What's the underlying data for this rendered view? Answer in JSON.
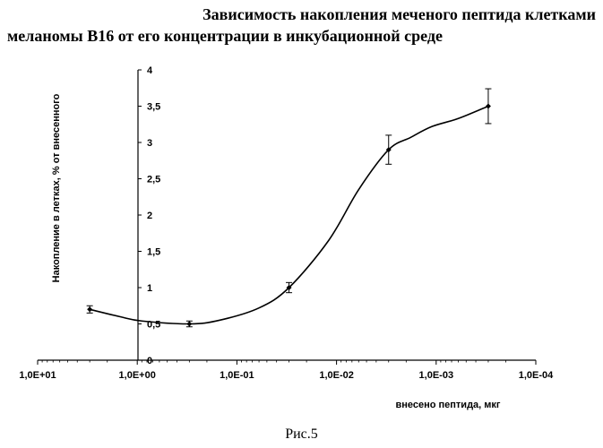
{
  "figure": {
    "title_line1": "Зависимость накопления меченого пептида клетками",
    "title_line2": "меланомы В16 от его концентрации в инкубационной среде",
    "caption": "Рис.5"
  },
  "chart_data": {
    "type": "line",
    "title": "Зависимость накопления меченого пептида клетками меланомы В16 от его концентрации в инкубационной среде",
    "xlabel": "внесено пептида, мкг",
    "ylabel": "Накопление в летках, % от внесенного",
    "x_scale": "log",
    "x_reversed": true,
    "xlim": [
      10,
      0.0001
    ],
    "ylim": [
      0,
      4
    ],
    "x_ticks": [
      10,
      1,
      0.1,
      0.01,
      0.001,
      0.0001
    ],
    "x_tick_labels": [
      "1,0E+01",
      "1,0E+00",
      "1,0E-01",
      "1,0E-02",
      "1,0E-03",
      "1,0E-04"
    ],
    "y_ticks": [
      0,
      0.5,
      1,
      1.5,
      2,
      2.5,
      3,
      3.5,
      4
    ],
    "y_tick_labels": [
      "0",
      "0,5",
      "1",
      "1,5",
      "2",
      "2,5",
      "3",
      "3,5",
      "4"
    ],
    "grid": false,
    "legend": "none",
    "series": [
      {
        "x": [
          3.0,
          0.3,
          0.03,
          0.003,
          0.0003
        ],
        "y": [
          0.7,
          0.5,
          1.0,
          2.9,
          3.5
        ],
        "error": [
          0.05,
          0.04,
          0.07,
          0.2,
          0.24
        ]
      }
    ],
    "curve_points": {
      "x": [
        3.0,
        1.5,
        0.9,
        0.3,
        0.15,
        0.06,
        0.03,
        0.012,
        0.006,
        0.003,
        0.0018,
        0.0011,
        0.0006,
        0.0003
      ],
      "y": [
        0.7,
        0.6,
        0.54,
        0.5,
        0.55,
        0.72,
        1.0,
        1.65,
        2.35,
        2.9,
        3.07,
        3.22,
        3.33,
        3.5
      ]
    }
  }
}
